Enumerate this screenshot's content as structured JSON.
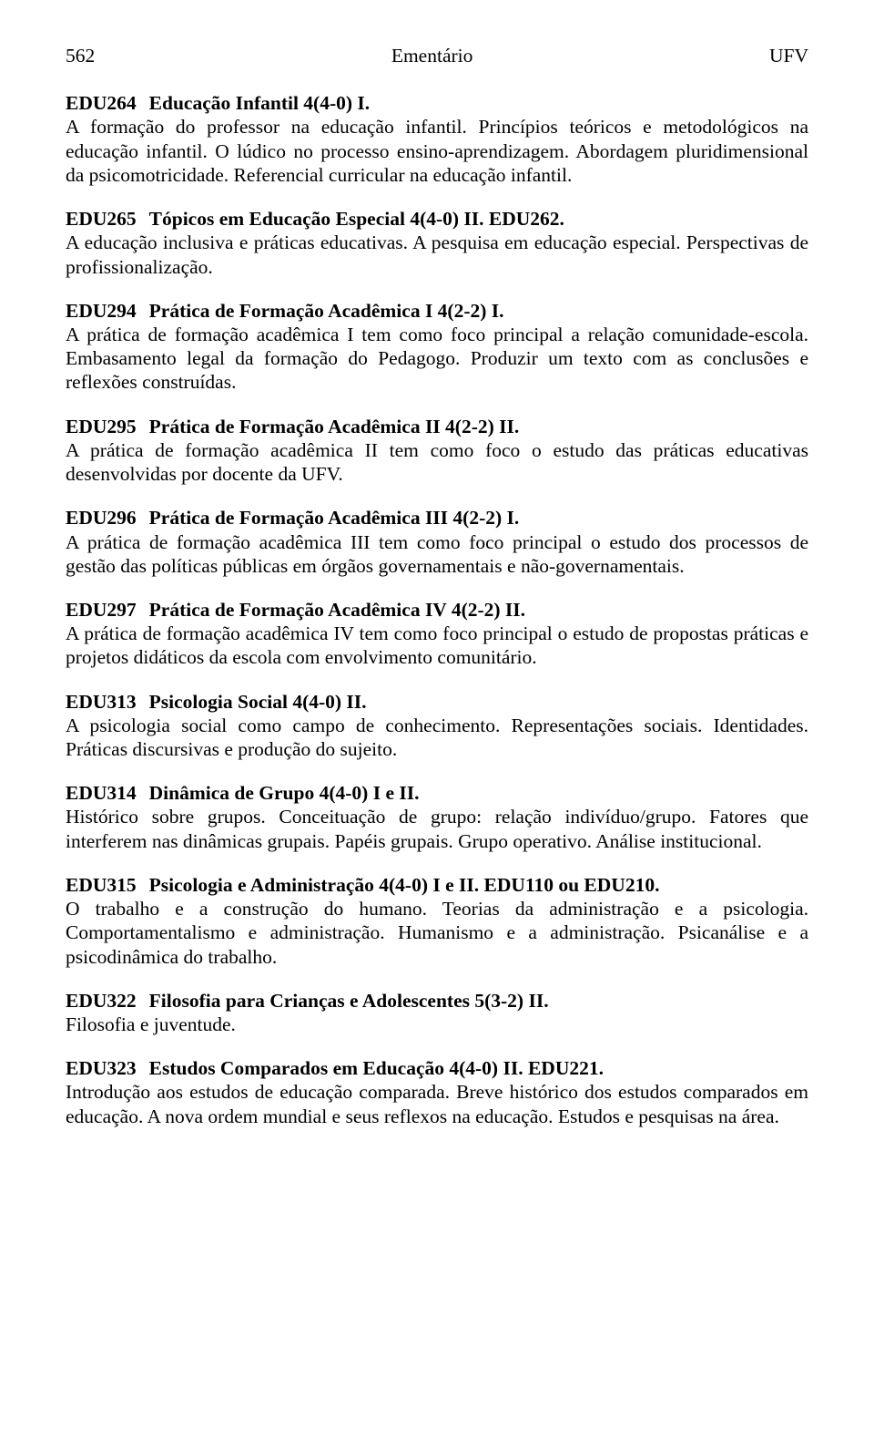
{
  "header": {
    "page_number": "562",
    "center": "Ementário",
    "right": "UFV"
  },
  "entries": [
    {
      "code": "EDU264",
      "title": "Educação Infantil 4(4-0) I.",
      "desc": "A formação do professor na educação infantil. Princípios teóricos e metodológicos na educação infantil. O lúdico no processo ensino-aprendizagem. Abordagem pluridimensional da psicomotricidade. Referencial curricular na educação infantil."
    },
    {
      "code": "EDU265",
      "title": "Tópicos em Educação Especial 4(4-0) II. EDU262.",
      "desc": "A educação inclusiva e práticas educativas. A pesquisa em educação especial. Perspectivas de profissionalização."
    },
    {
      "code": "EDU294",
      "title": "Prática de Formação Acadêmica I 4(2-2) I.",
      "desc": "A prática de formação acadêmica I tem como foco principal a relação comunidade-escola. Embasamento legal da formação do Pedagogo. Produzir um texto com as conclusões e reflexões construídas."
    },
    {
      "code": "EDU295",
      "title": "Prática de Formação Acadêmica II 4(2-2) II.",
      "desc": "A prática de formação acadêmica II tem como foco o estudo das práticas educativas desenvolvidas por docente da UFV."
    },
    {
      "code": "EDU296",
      "title": "Prática de Formação Acadêmica III 4(2-2) I.",
      "desc": "A prática de formação acadêmica III tem como foco principal o estudo dos processos de gestão das políticas públicas em órgãos governamentais e não-governamentais."
    },
    {
      "code": "EDU297",
      "title": "Prática de Formação Acadêmica IV 4(2-2) II.",
      "desc": "A prática de formação acadêmica IV tem como foco principal o estudo de propostas práticas e projetos didáticos da escola com envolvimento comunitário."
    },
    {
      "code": "EDU313",
      "title": "Psicologia Social 4(4-0) II.",
      "desc": "A psicologia social como campo de conhecimento. Representações sociais. Identidades. Práticas discursivas e produção do sujeito."
    },
    {
      "code": "EDU314",
      "title": "Dinâmica de Grupo 4(4-0) I e II.",
      "desc": "Histórico sobre grupos. Conceituação de grupo: relação indivíduo/grupo. Fatores que interferem nas dinâmicas grupais. Papéis grupais. Grupo operativo. Análise institucional."
    },
    {
      "code": "EDU315",
      "title": "Psicologia e Administração 4(4-0) I e II. EDU110 ou EDU210.",
      "desc": "O trabalho e a construção do humano. Teorias da administração e a psicologia. Comportamentalismo e administração. Humanismo e a administração. Psicanálise e a psicodinâmica do trabalho."
    },
    {
      "code": "EDU322",
      "title": "Filosofia para Crianças e Adolescentes 5(3-2) II.",
      "desc": "Filosofia e juventude."
    },
    {
      "code": "EDU323",
      "title": "Estudos Comparados em Educação 4(4-0) II. EDU221.",
      "desc": "Introdução aos estudos de educação comparada. Breve histórico dos estudos comparados em educação. A nova ordem mundial e seus reflexos na educação. Estudos e pesquisas na área."
    }
  ]
}
